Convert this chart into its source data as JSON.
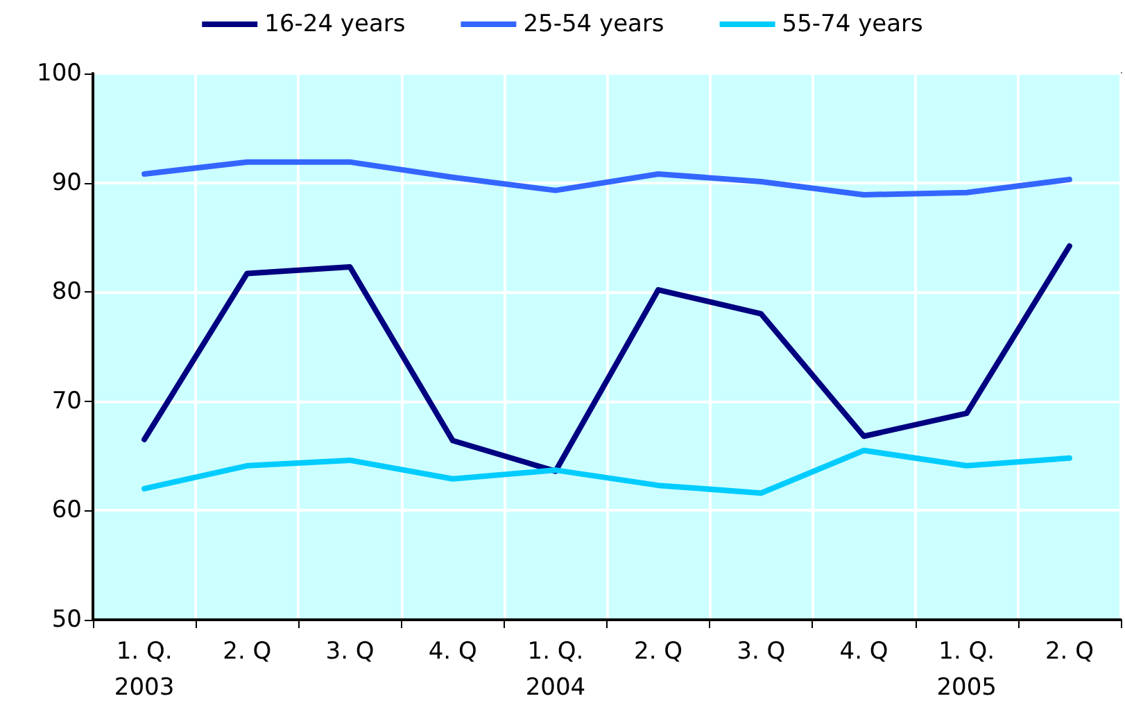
{
  "chart_data": {
    "type": "line",
    "categories": [
      "1. Q.\n2003",
      "2. Q",
      "3. Q",
      "4. Q",
      "1. Q.\n2004",
      "2. Q",
      "3. Q",
      "4. Q",
      "1. Q.\n2005",
      "2. Q"
    ],
    "series": [
      {
        "name": "16-24 years",
        "color": "#000080",
        "values": [
          66.5,
          81.7,
          82.3,
          66.4,
          63.6,
          80.2,
          78.0,
          66.8,
          68.9,
          84.2
        ]
      },
      {
        "name": "25-54 years",
        "color": "#3366ff",
        "values": [
          90.8,
          91.9,
          91.9,
          90.5,
          89.3,
          90.8,
          90.1,
          88.9,
          89.1,
          90.3
        ]
      },
      {
        "name": "55-74 years",
        "color": "#00ccff",
        "values": [
          62.0,
          64.1,
          64.6,
          62.9,
          63.7,
          62.3,
          61.6,
          65.5,
          64.1,
          64.8
        ]
      }
    ],
    "ylim": [
      50,
      100
    ],
    "yticks": [
      50,
      60,
      70,
      80,
      90,
      100
    ],
    "grid": true,
    "legend": "top",
    "marker": "none",
    "line_style": "solid"
  }
}
